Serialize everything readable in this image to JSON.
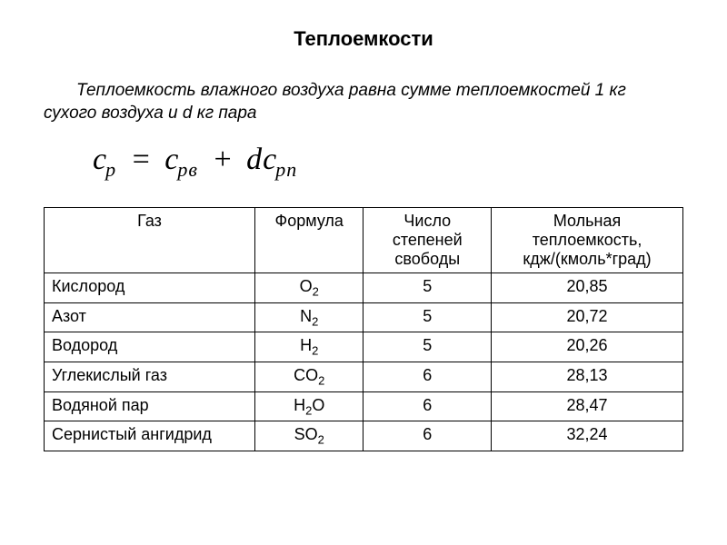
{
  "title": "Теплоемкости",
  "description": "Теплоемкость влажного воздуха равна сумме теплоемкостей 1 кг  сухого воздуха и d кг пара",
  "formula": {
    "lhs_base": "c",
    "lhs_sub": "p",
    "eq": "=",
    "t1_base": "c",
    "t1_sub": "pв",
    "plus": "+",
    "coef": "d",
    "t2_base": "c",
    "t2_sub": "pп"
  },
  "table": {
    "headers": {
      "gas": "Газ",
      "formula": "Формула",
      "dof": "Число степеней свободы",
      "cap": "Мольная теплоемкость, кдж/(кмоль*град)"
    },
    "rows": [
      {
        "gas": "Кислород",
        "fbase": "O",
        "fsub": "2",
        "dof": "5",
        "cap": "20,85"
      },
      {
        "gas": "Азот",
        "fbase": "N",
        "fsub": "2",
        "dof": "5",
        "cap": "20,72"
      },
      {
        "gas": "Водород",
        "fbase": "H",
        "fsub": "2",
        "dof": "5",
        "cap": "20,26"
      },
      {
        "gas": "Углекислый газ",
        "fbase": "CO",
        "fsub": "2",
        "dof": "6",
        "cap": "28,13"
      },
      {
        "gas": "Водяной пар",
        "fbase": "H",
        "fsub": "2",
        "fbase2": "O",
        "dof": "6",
        "cap": "28,47"
      },
      {
        "gas": "Сернистый ангидрид",
        "fbase": "SO",
        "fsub": "2",
        "dof": "6",
        "cap": "32,24"
      }
    ]
  },
  "style": {
    "background": "#ffffff",
    "text_color": "#000000",
    "border_color": "#000000",
    "title_fontsize": 22,
    "body_fontsize": 19,
    "table_fontsize": 18,
    "formula_fontsize": 34
  }
}
